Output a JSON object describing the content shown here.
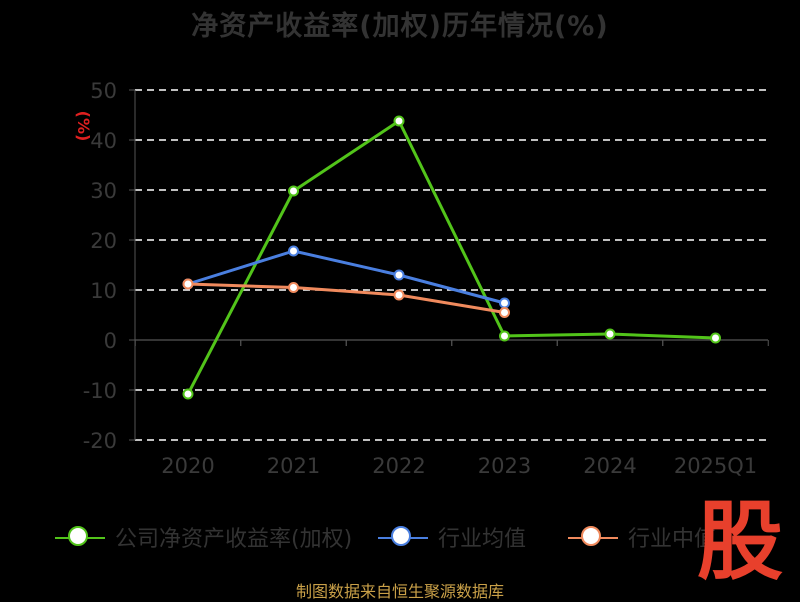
{
  "chart_data": {
    "type": "line",
    "title": "净资产收益率(加权)历年情况(%)",
    "ylabel": "(%)",
    "xlabel": "",
    "categories": [
      "2020",
      "2021",
      "2022",
      "2023",
      "2024",
      "2025Q1"
    ],
    "ylim": [
      -20,
      50
    ],
    "yticks": [
      50,
      40,
      30,
      20,
      10,
      0,
      -10,
      -20
    ],
    "grid": true,
    "legend_position": "bottom",
    "series": [
      {
        "name": "公司净资产收益率(加权)",
        "color": "#52c41a",
        "values": [
          -10.8,
          29.8,
          43.8,
          0.8,
          1.2,
          0.4
        ]
      },
      {
        "name": "行业均值",
        "color": "#4a7fe0",
        "values": [
          11.2,
          17.8,
          13.0,
          7.4,
          null,
          null
        ]
      },
      {
        "name": "行业中值",
        "color": "#f08a5d",
        "values": [
          11.2,
          10.5,
          9.0,
          5.5,
          null,
          null
        ]
      }
    ]
  },
  "source_note": "制图数据来自恒生聚源数据库",
  "brand_logo_text": "股"
}
